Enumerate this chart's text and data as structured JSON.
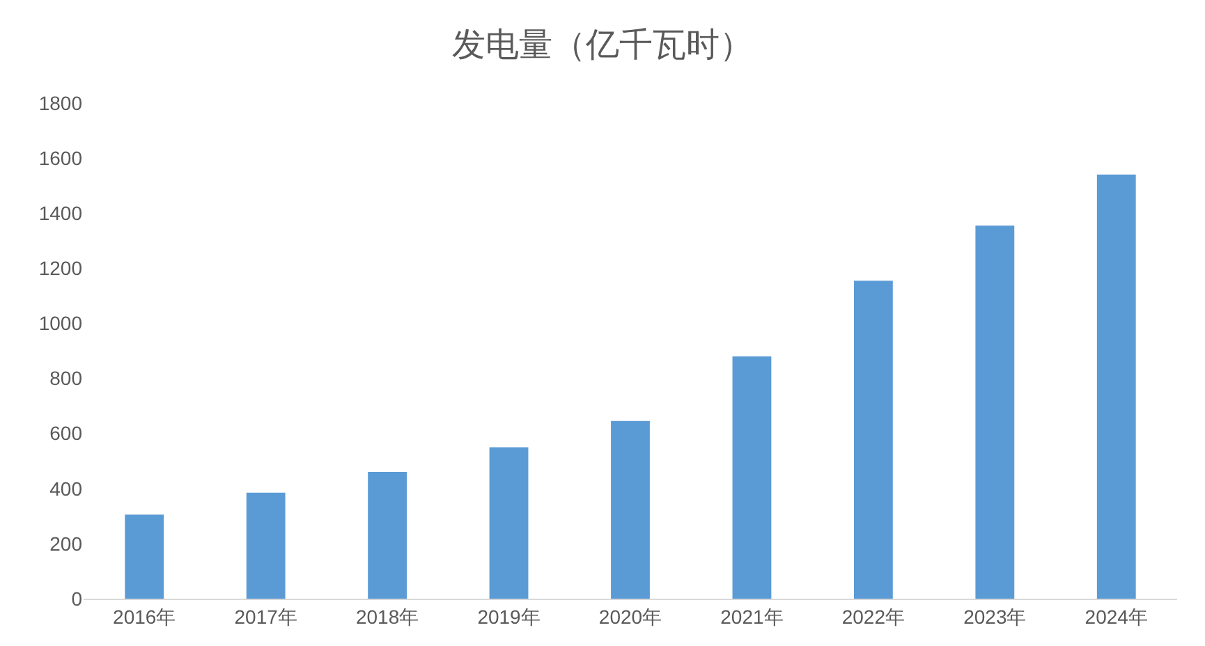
{
  "chart_data": {
    "type": "bar",
    "title": "发电量（亿千瓦时）",
    "categories": [
      "2016年",
      "2017年",
      "2018年",
      "2019年",
      "2020年",
      "2021年",
      "2022年",
      "2023年",
      "2024年"
    ],
    "values": [
      305,
      385,
      460,
      550,
      645,
      880,
      1155,
      1355,
      1540
    ],
    "color": "#5b9bd5",
    "ylim": [
      0,
      1800
    ],
    "yticks": [
      0,
      200,
      400,
      600,
      800,
      1000,
      1200,
      1400,
      1600,
      1800
    ],
    "grid": false
  }
}
